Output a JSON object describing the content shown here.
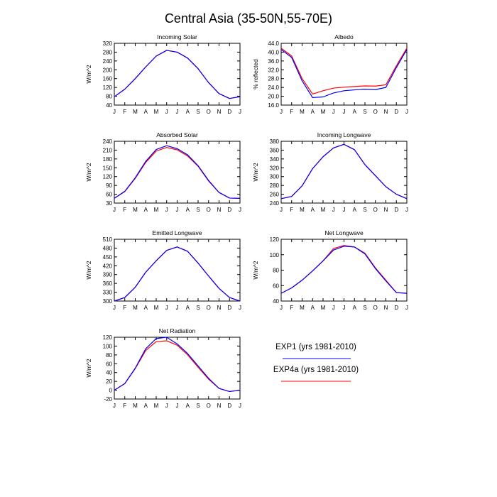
{
  "figure": {
    "title": "Central Asia (35-50N,55-70E)"
  },
  "colors": {
    "exp1": "#0000ff",
    "exp4a": "#ff0000",
    "axis": "#000000"
  },
  "legend": {
    "entries": [
      {
        "label": "EXP1 (yrs 1981-2010)",
        "color": "#0000ff"
      },
      {
        "label": "EXP4a (yrs 1981-2010)",
        "color": "#ff0000"
      }
    ]
  },
  "chart_data": [
    {
      "type": "line",
      "title": "Incoming Solar",
      "ylabel": "W/m^2",
      "ylim": [
        40,
        320
      ],
      "yticks": [
        "40",
        "80",
        "120",
        "160",
        "200",
        "240",
        "280",
        "320"
      ],
      "categories": [
        "J",
        "F",
        "M",
        "A",
        "M",
        "J",
        "J",
        "A",
        "S",
        "O",
        "N",
        "D",
        "J"
      ],
      "series": [
        {
          "name": "EXP1 (yrs 1981-2010)",
          "color": "#0000ff",
          "values": [
            78,
            112,
            160,
            213,
            262,
            288,
            280,
            253,
            205,
            142,
            92,
            70,
            78
          ]
        },
        {
          "name": "EXP4a (yrs 1981-2010)",
          "color": "#ff0000",
          "values": [
            78,
            112,
            160,
            213,
            262,
            288,
            280,
            253,
            205,
            142,
            92,
            70,
            78
          ]
        }
      ]
    },
    {
      "type": "line",
      "title": "Albedo",
      "ylabel": "% reflected",
      "ylim": [
        16,
        44
      ],
      "yticks": [
        "16.0",
        "20.0",
        "24.0",
        "28.0",
        "32.0",
        "36.0",
        "40.0",
        "44.0"
      ],
      "categories": [
        "J",
        "F",
        "M",
        "A",
        "M",
        "J",
        "J",
        "A",
        "S",
        "O",
        "N",
        "D",
        "J"
      ],
      "series": [
        {
          "name": "EXP1 (yrs 1981-2010)",
          "color": "#0000ff",
          "values": [
            41.2,
            37.6,
            27.0,
            19.4,
            19.7,
            21.5,
            22.5,
            22.9,
            23.2,
            23.0,
            24.0,
            33.0,
            41.2
          ]
        },
        {
          "name": "EXP4a (yrs 1981-2010)",
          "color": "#ff0000",
          "values": [
            41.8,
            38.3,
            28.0,
            21.0,
            22.5,
            23.7,
            24.1,
            24.4,
            24.7,
            24.6,
            25.2,
            33.8,
            41.8
          ]
        }
      ]
    },
    {
      "type": "line",
      "title": "Absorbed Solar",
      "ylabel": "W/m^2",
      "ylim": [
        30,
        240
      ],
      "yticks": [
        "30",
        "60",
        "90",
        "120",
        "150",
        "180",
        "210",
        "240"
      ],
      "categories": [
        "J",
        "F",
        "M",
        "A",
        "M",
        "J",
        "J",
        "A",
        "S",
        "O",
        "N",
        "D",
        "J"
      ],
      "series": [
        {
          "name": "EXP1 (yrs 1981-2010)",
          "color": "#0000ff",
          "values": [
            46,
            70,
            116,
            172,
            212,
            225,
            215,
            194,
            157,
            107,
            66,
            47,
            46
          ]
        },
        {
          "name": "EXP4a (yrs 1981-2010)",
          "color": "#ff0000",
          "values": [
            46,
            69,
            114,
            168,
            207,
            219,
            211,
            190,
            155,
            105,
            66,
            47,
            46
          ]
        }
      ]
    },
    {
      "type": "line",
      "title": "Incoming Longwave",
      "ylabel": "W/m^2",
      "ylim": [
        240,
        380
      ],
      "yticks": [
        "240",
        "260",
        "280",
        "300",
        "320",
        "340",
        "360",
        "380"
      ],
      "categories": [
        "J",
        "F",
        "M",
        "A",
        "M",
        "J",
        "J",
        "A",
        "S",
        "O",
        "N",
        "D",
        "J"
      ],
      "series": [
        {
          "name": "EXP1 (yrs 1981-2010)",
          "color": "#0000ff",
          "values": [
            250,
            255,
            279,
            318,
            345,
            365,
            373,
            361,
            327,
            302,
            277,
            260,
            250
          ]
        },
        {
          "name": "EXP4a (yrs 1981-2010)",
          "color": "#ff0000",
          "values": [
            250,
            255,
            279,
            318,
            345,
            365,
            373,
            361,
            327,
            302,
            277,
            260,
            250
          ]
        }
      ]
    },
    {
      "type": "line",
      "title": "Emitted Longwave",
      "ylabel": "W/m^2",
      "ylim": [
        300,
        510
      ],
      "yticks": [
        "300",
        "330",
        "360",
        "390",
        "420",
        "450",
        "480",
        "510"
      ],
      "categories": [
        "J",
        "F",
        "M",
        "A",
        "M",
        "J",
        "J",
        "A",
        "S",
        "O",
        "N",
        "D",
        "J"
      ],
      "series": [
        {
          "name": "EXP1 (yrs 1981-2010)",
          "color": "#0000ff",
          "values": [
            300,
            312,
            347,
            398,
            437,
            472,
            484,
            469,
            429,
            385,
            343,
            312,
            300
          ]
        },
        {
          "name": "EXP4a (yrs 1981-2010)",
          "color": "#ff0000",
          "values": [
            300,
            312,
            347,
            398,
            437,
            472,
            484,
            469,
            429,
            385,
            343,
            312,
            300
          ]
        }
      ]
    },
    {
      "type": "line",
      "title": "Net Longwave",
      "ylabel": "W/m^2",
      "ylim": [
        40,
        120
      ],
      "yticks": [
        "40",
        "60",
        "80",
        "100",
        "120"
      ],
      "categories": [
        "J",
        "F",
        "M",
        "A",
        "M",
        "J",
        "J",
        "A",
        "S",
        "O",
        "N",
        "D",
        "J"
      ],
      "series": [
        {
          "name": "EXP1 (yrs 1981-2010)",
          "color": "#0000ff",
          "values": [
            50,
            57,
            67,
            79,
            92,
            106,
            111,
            110,
            101,
            82,
            66,
            51,
            50
          ]
        },
        {
          "name": "EXP4a (yrs 1981-2010)",
          "color": "#ff0000",
          "values": [
            50,
            57,
            67,
            79,
            92,
            108,
            112,
            110,
            102,
            83,
            67,
            51,
            50
          ]
        }
      ]
    },
    {
      "type": "line",
      "title": "Net Radiation",
      "ylabel": "W/m^2",
      "ylim": [
        -20,
        120
      ],
      "yticks": [
        "-20",
        "0",
        "20",
        "40",
        "60",
        "80",
        "100",
        "120"
      ],
      "categories": [
        "J",
        "F",
        "M",
        "A",
        "M",
        "J",
        "J",
        "A",
        "S",
        "O",
        "N",
        "D",
        "J"
      ],
      "series": [
        {
          "name": "EXP1 (yrs 1981-2010)",
          "color": "#0000ff",
          "values": [
            0,
            15,
            50,
            94,
            117,
            120,
            105,
            83,
            55,
            27,
            4,
            -3,
            0
          ]
        },
        {
          "name": "EXP4a (yrs 1981-2010)",
          "color": "#ff0000",
          "values": [
            0,
            15,
            49,
            90,
            110,
            112,
            102,
            80,
            52,
            25,
            4,
            -3,
            0
          ]
        }
      ]
    }
  ]
}
